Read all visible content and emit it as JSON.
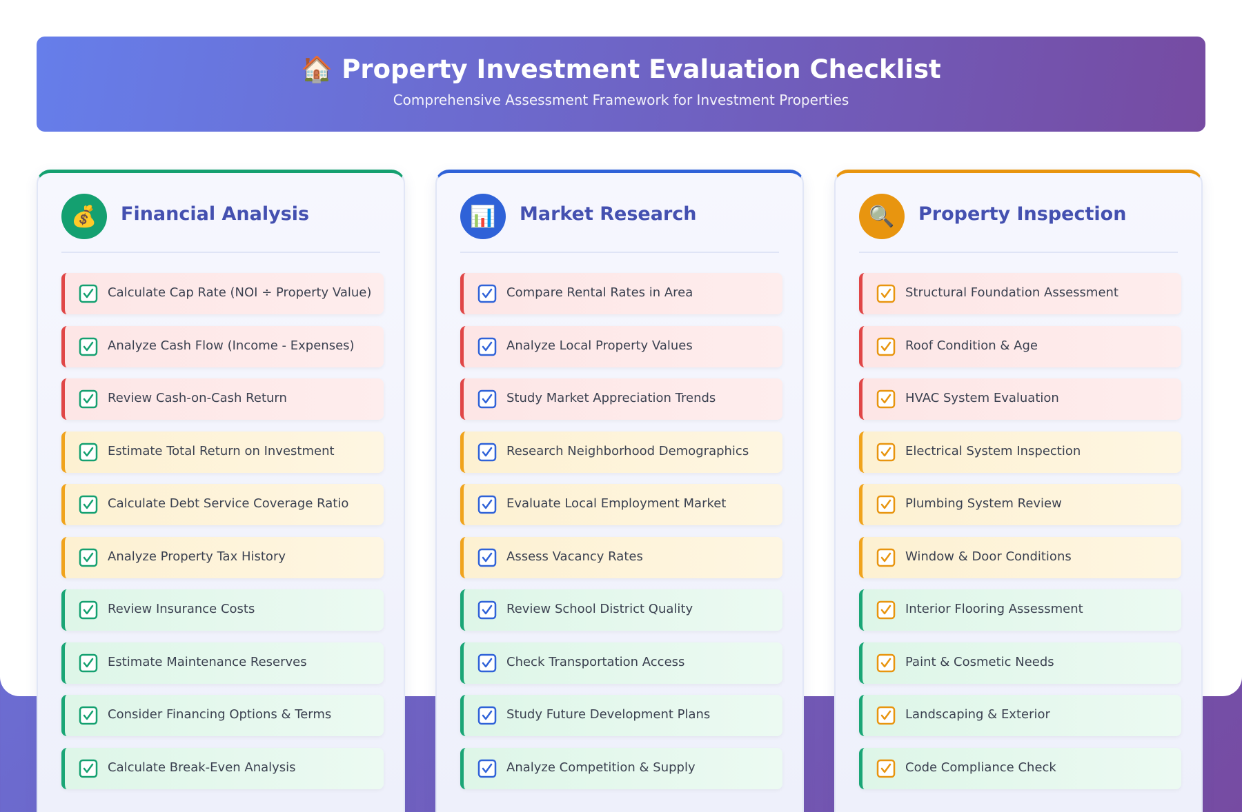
{
  "header": {
    "icon": "🏠",
    "title": "Property Investment Evaluation Checklist",
    "subtitle": "Comprehensive Assessment Framework for Investment Properties"
  },
  "columns": [
    {
      "icon": "💰",
      "title": "Financial Analysis",
      "color": "#14a070",
      "items": [
        "Calculate Cap Rate (NOI ÷ Property Value)",
        "Analyze Cash Flow (Income - Expenses)",
        "Review Cash-on-Cash Return",
        "Estimate Total Return on Investment",
        "Calculate Debt Service Coverage Ratio",
        "Analyze Property Tax History",
        "Review Insurance Costs",
        "Estimate Maintenance Reserves",
        "Consider Financing Options & Terms",
        "Calculate Break-Even Analysis"
      ]
    },
    {
      "icon": "📊",
      "title": "Market Research",
      "color": "#2f62d8",
      "items": [
        "Compare Rental Rates in Area",
        "Analyze Local Property Values",
        "Study Market Appreciation Trends",
        "Research Neighborhood Demographics",
        "Evaluate Local Employment Market",
        "Assess Vacancy Rates",
        "Review School District Quality",
        "Check Transportation Access",
        "Study Future Development Plans",
        "Analyze Competition & Supply"
      ]
    },
    {
      "icon": "🔍",
      "title": "Property Inspection",
      "color": "#e8950f",
      "items": [
        "Structural Foundation Assessment",
        "Roof Condition & Age",
        "HVAC System Evaluation",
        "Electrical System Inspection",
        "Plumbing System Review",
        "Window & Door Conditions",
        "Interior Flooring Assessment",
        "Paint & Cosmetic Needs",
        "Landscaping & Exterior",
        "Code Compliance Check"
      ]
    }
  ]
}
